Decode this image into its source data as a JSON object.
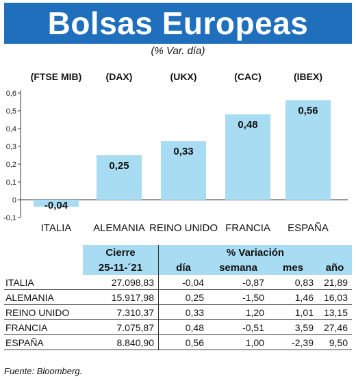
{
  "header": {
    "title": "Bolsas Europeas",
    "subtitle": "(% Var. día)"
  },
  "colors": {
    "banner": "#1f6fbd",
    "bar": "#a8dcf2",
    "header_fill": "#a8dcf2"
  },
  "chart_data": {
    "type": "bar",
    "categories": [
      "ITALIA",
      "ALEMANIA",
      "REINO UNIDO",
      "FRANCIA",
      "ESPAÑA"
    ],
    "index_labels": [
      "(FTSE MIB)",
      "(DAX)",
      "(UKX)",
      "(CAC)",
      "(IBEX)"
    ],
    "values": [
      -0.04,
      0.25,
      0.33,
      0.48,
      0.56
    ],
    "value_labels": [
      "-0,04",
      "0,25",
      "0,33",
      "0,48",
      "0,56"
    ],
    "y_ticks": [
      "0,6",
      "0,5",
      "0,4",
      "0,3",
      "0,2",
      "0,1",
      "0",
      "-0,1"
    ],
    "ylim": [
      -0.1,
      0.6
    ],
    "grid": false
  },
  "table": {
    "group_headers": {
      "close": "Cierre",
      "variation": "% Variación"
    },
    "columns": [
      "25-11-´21",
      "día",
      "semana",
      "mes",
      "año"
    ],
    "rows": [
      {
        "name": "ITALIA",
        "close": "27.098,83",
        "dia": "-0,04",
        "semana": "-0,87",
        "mes": "0,83",
        "ano": "21,89"
      },
      {
        "name": "ALEMANIA",
        "close": "15.917,98",
        "dia": "0,25",
        "semana": "-1,50",
        "mes": "1,46",
        "ano": "16,03"
      },
      {
        "name": "REINO UNIDO",
        "close": "7.310,37",
        "dia": "0,33",
        "semana": "1,20",
        "mes": "1,01",
        "ano": "13,15"
      },
      {
        "name": "FRANCIA",
        "close": "7.075,87",
        "dia": "0,48",
        "semana": "-0,51",
        "mes": "3,59",
        "ano": "27,46"
      },
      {
        "name": "ESPAÑA",
        "close": "8.840,90",
        "dia": "0,56",
        "semana": "1,00",
        "mes": "-2,39",
        "ano": "9,50"
      }
    ]
  },
  "source": "Fuente: Bloomberg."
}
